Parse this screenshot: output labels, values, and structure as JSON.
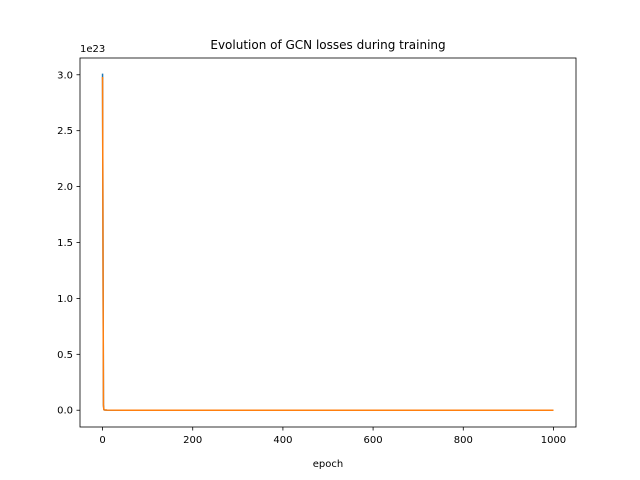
{
  "chart_data": {
    "type": "line",
    "title": "Evolution of GCN losses during training",
    "xlabel": "epoch",
    "ylabel": "",
    "y_offset_label": "1e23",
    "y_scale_factor": 1e+23,
    "xlim": [
      -50,
      1050
    ],
    "ylim": [
      -0.15,
      3.15
    ],
    "x_ticks": [
      0,
      200,
      400,
      600,
      800,
      1000
    ],
    "y_ticks": [
      0.0,
      0.5,
      1.0,
      1.5,
      2.0,
      2.5,
      3.0
    ],
    "y_tick_labels": [
      "0.0",
      "0.5",
      "1.0",
      "1.5",
      "2.0",
      "2.5",
      "3.0"
    ],
    "grid": false,
    "legend": "none",
    "series": [
      {
        "color": "#1f77b4",
        "points": [
          [
            0,
            3.01
          ],
          [
            1,
            1.5
          ],
          [
            2,
            0.05
          ],
          [
            3,
            0.005
          ],
          [
            5,
            0.002
          ],
          [
            10,
            0.0005
          ],
          [
            50,
            0.0
          ],
          [
            1000,
            0.0
          ]
        ]
      },
      {
        "color": "#ff7f0e",
        "points": [
          [
            0,
            2.98
          ],
          [
            1,
            1.4
          ],
          [
            2,
            0.04
          ],
          [
            3,
            0.004
          ],
          [
            5,
            0.0015
          ],
          [
            10,
            0.0004
          ],
          [
            50,
            0.0
          ],
          [
            1000,
            0.0
          ]
        ]
      }
    ]
  }
}
